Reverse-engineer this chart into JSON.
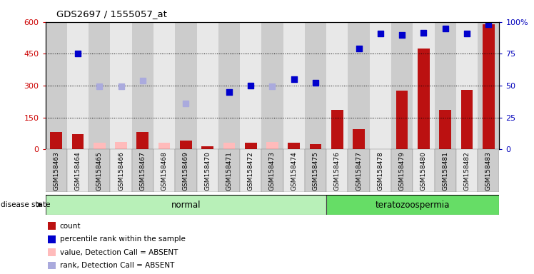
{
  "title": "GDS2697 / 1555057_at",
  "samples": [
    "GSM158463",
    "GSM158464",
    "GSM158465",
    "GSM158466",
    "GSM158467",
    "GSM158468",
    "GSM158469",
    "GSM158470",
    "GSM158471",
    "GSM158472",
    "GSM158473",
    "GSM158474",
    "GSM158475",
    "GSM158476",
    "GSM158477",
    "GSM158478",
    "GSM158479",
    "GSM158480",
    "GSM158481",
    "GSM158482",
    "GSM158483"
  ],
  "groups": [
    {
      "label": "normal",
      "start": 0,
      "end": 13,
      "color": "#b8f0b8"
    },
    {
      "label": "teratozoospermia",
      "start": 13,
      "end": 21,
      "color": "#66dd66"
    }
  ],
  "count_present": [
    80,
    70,
    null,
    null,
    80,
    null,
    40,
    15,
    null,
    30,
    null,
    30,
    25,
    185,
    95,
    null,
    275,
    475,
    185,
    280,
    590
  ],
  "count_absent": [
    null,
    null,
    30,
    35,
    null,
    30,
    null,
    null,
    30,
    null,
    35,
    null,
    null,
    null,
    null,
    null,
    null,
    null,
    null,
    null,
    null
  ],
  "rank_present": [
    null,
    450,
    null,
    null,
    null,
    null,
    null,
    null,
    270,
    300,
    null,
    330,
    315,
    null,
    475,
    545,
    540,
    550,
    570,
    545,
    590
  ],
  "rank_absent": [
    null,
    null,
    295,
    295,
    325,
    null,
    215,
    null,
    null,
    null,
    295,
    null,
    null,
    null,
    null,
    null,
    null,
    null,
    null,
    null,
    null
  ],
  "ylim_left": [
    0,
    600
  ],
  "ylim_right": [
    0,
    100
  ],
  "left_ticks": [
    0,
    150,
    300,
    450,
    600
  ],
  "right_ticks": [
    0,
    25,
    50,
    75,
    100
  ],
  "right_tick_labels": [
    "0",
    "25",
    "50",
    "75",
    "100%"
  ],
  "grid_values": [
    150,
    300,
    450
  ],
  "bar_color_present": "#bb1111",
  "bar_color_absent": "#ffbbbb",
  "dot_color_present": "#0000cc",
  "dot_color_absent": "#aaaadd",
  "legend_items": [
    {
      "label": "count",
      "color": "#bb1111"
    },
    {
      "label": "percentile rank within the sample",
      "color": "#0000cc"
    },
    {
      "label": "value, Detection Call = ABSENT",
      "color": "#ffbbbb"
    },
    {
      "label": "rank, Detection Call = ABSENT",
      "color": "#aaaadd"
    }
  ],
  "disease_state_label": "disease state",
  "background_color": "#ffffff",
  "col_bg_even": "#cccccc",
  "col_bg_odd": "#e8e8e8"
}
